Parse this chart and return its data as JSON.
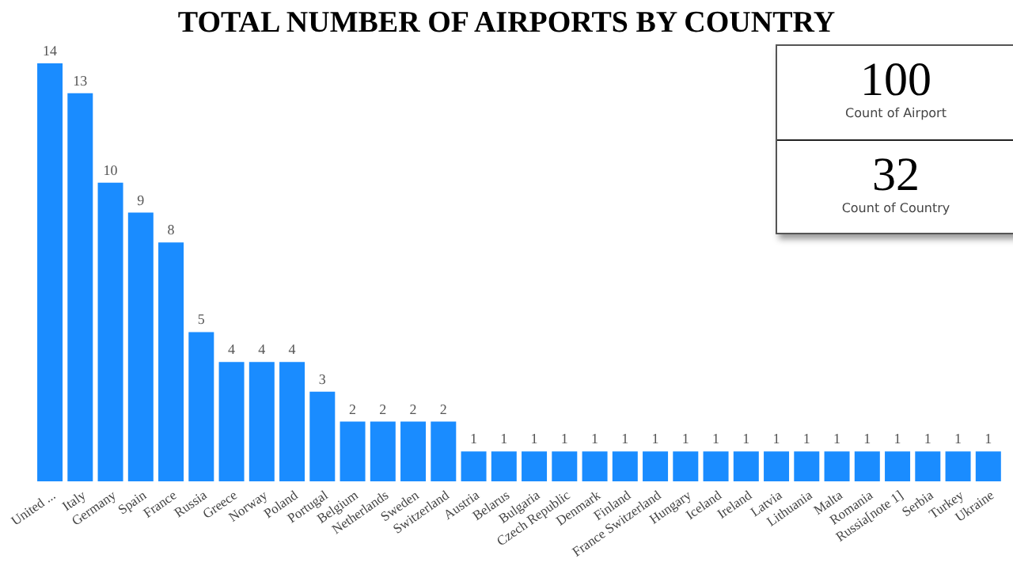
{
  "chart_data": [
    {
      "type": "bar",
      "title": "TOTAL NUMBER OF AIRPORTS BY COUNTRY",
      "categories": [
        "United ...",
        "Italy",
        "Germany",
        "Spain",
        "France",
        "Russia",
        "Greece",
        "Norway",
        "Poland",
        "Portugal",
        "Belgium",
        "Netherlands",
        "Sweden",
        "Switzerland",
        "Austria",
        "Belarus",
        "Bulgaria",
        "Czech Republic",
        "Denmark",
        "Finland",
        "France Switzerland",
        "Hungary",
        "Iceland",
        "Ireland",
        "Latvia",
        "Lithuania",
        "Malta",
        "Romania",
        "Russia[note 1]",
        "Serbia",
        "Turkey",
        "Ukraine"
      ],
      "values": [
        14,
        13,
        10,
        9,
        8,
        5,
        4,
        4,
        4,
        3,
        2,
        2,
        2,
        2,
        1,
        1,
        1,
        1,
        1,
        1,
        1,
        1,
        1,
        1,
        1,
        1,
        1,
        1,
        1,
        1,
        1,
        1
      ],
      "color": "#1a8cff",
      "data_labels": true
    },
    {
      "type": "other",
      "annotations": [
        "100",
        "Count of Airport",
        "32",
        "Count of Country"
      ]
    }
  ]
}
